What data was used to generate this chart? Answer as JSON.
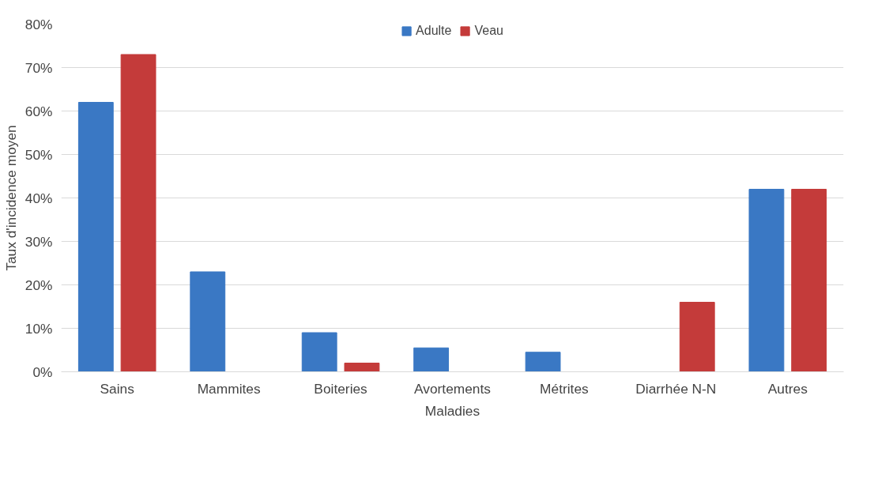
{
  "chart_data": {
    "type": "bar",
    "xlabel": "Maladies",
    "ylabel": "Taux d'incidence moyen",
    "categories": [
      "Sains",
      "Mammites",
      "Boiteries",
      "Avortements",
      "Métrites",
      "Diarrhée N-N",
      "Autres"
    ],
    "series": [
      {
        "name": "Adulte",
        "color": "#3a78c4",
        "values": [
          62,
          23,
          9,
          5.5,
          4.5,
          0,
          42
        ]
      },
      {
        "name": "Veau",
        "color": "#c43b3a",
        "values": [
          73,
          0,
          2,
          0,
          0,
          16,
          42
        ]
      }
    ],
    "ylim": [
      0,
      80
    ],
    "yticks": [
      {
        "value": 0,
        "label": "0%"
      },
      {
        "value": 10,
        "label": "10%"
      },
      {
        "value": 20,
        "label": "20%"
      },
      {
        "value": 30,
        "label": "30%"
      },
      {
        "value": 40,
        "label": "40%"
      },
      {
        "value": 50,
        "label": "50%"
      },
      {
        "value": 60,
        "label": "60%"
      },
      {
        "value": 70,
        "label": "70%"
      },
      {
        "value": 80,
        "label": "80%"
      }
    ],
    "grid": "y",
    "legend": "top"
  }
}
